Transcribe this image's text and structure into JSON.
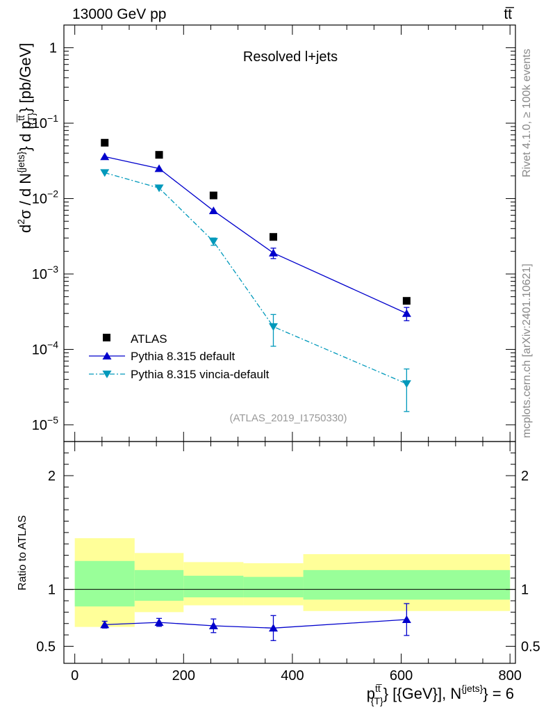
{
  "header": {
    "energy_label": "13000 GeV pp",
    "process_label": "tt̅",
    "inplot_title": "Resolved l+jets",
    "analysis_id": "(ATLAS_2019_I1750330)",
    "side_rivet": "Rivet 4.1.0, ≥ 100k events",
    "side_mcplots": "mcplots.cern.ch [arXiv:2401.10621]"
  },
  "colors": {
    "atlas": "#000000",
    "default": "#0000cc",
    "vincia": "#0099bb",
    "band_inner": "#99ff99",
    "band_outer": "#ffff99"
  },
  "chart_data": {
    "type": "scatter",
    "top_panel": {
      "ylabel_parts": [
        "d",
        "2",
        "σ /  d N",
        "{jets}",
        "} d p",
        "t̅t̅",
        "{T}",
        "} [pb/GeV]"
      ],
      "ylog": true,
      "ylim": [
        6e-06,
        2
      ],
      "ytick_labels": [
        {
          "base": "10",
          "exp": "−5",
          "value": 1e-05
        },
        {
          "base": "10",
          "exp": "−4",
          "value": 0.0001
        },
        {
          "base": "10",
          "exp": "−3",
          "value": 0.001
        },
        {
          "base": "10",
          "exp": "−2",
          "value": 0.01
        },
        {
          "base": "10",
          "exp": "−1",
          "value": 0.1
        },
        {
          "base": "1",
          "exp": "",
          "value": 1
        }
      ]
    },
    "x": {
      "xlim": [
        -20,
        810
      ],
      "bins": [
        [
          0,
          110
        ],
        [
          110,
          200
        ],
        [
          200,
          310
        ],
        [
          310,
          420
        ],
        [
          420,
          800
        ]
      ],
      "centers": [
        55,
        155,
        255,
        365,
        610
      ],
      "tick_labels": [
        "0",
        "200",
        "400",
        "600",
        "800"
      ],
      "tick_values": [
        0,
        200,
        400,
        600,
        800
      ],
      "xlabel_parts": [
        "p",
        "tt̅",
        "{T}",
        "} [{GeV}], N",
        "{jets}",
        "} = 6"
      ]
    },
    "series": [
      {
        "name": "ATLAS",
        "marker": "square",
        "values": [
          0.055,
          0.038,
          0.011,
          0.0031,
          0.00044
        ]
      },
      {
        "name": "Pythia 8.315 default",
        "marker": "triangle-up",
        "line": "solid",
        "values": [
          0.036,
          0.025,
          0.0069,
          0.0019,
          0.0003
        ],
        "err_low": [
          0.0005,
          0.0005,
          0.0002,
          0.0003,
          6e-05
        ],
        "err_high": [
          0.0005,
          0.0005,
          0.0002,
          0.0003,
          6e-05
        ]
      },
      {
        "name": "Pythia 8.315 vincia-default",
        "marker": "triangle-down",
        "line": "dashdot",
        "values": [
          0.022,
          0.0138,
          0.0027,
          0.0002,
          3.5e-05
        ],
        "err_low": [
          0.0005,
          0.0003,
          0.0003,
          9e-05,
          2e-05
        ],
        "err_high": [
          0.0005,
          0.0003,
          0.0003,
          9e-05,
          2e-05
        ]
      }
    ],
    "ratio_panel": {
      "ylabel": "Ratio to ATLAS",
      "ylim": [
        0.35,
        2.3
      ],
      "tick_labels": [
        "0.5",
        "1",
        "2"
      ],
      "tick_values": [
        0.5,
        1,
        2
      ],
      "band_inner": [
        [
          0.85,
          1.25
        ],
        [
          0.9,
          1.17
        ],
        [
          0.93,
          1.12
        ],
        [
          0.93,
          1.11
        ],
        [
          0.91,
          1.17
        ]
      ],
      "band_outer": [
        [
          0.67,
          1.45
        ],
        [
          0.8,
          1.32
        ],
        [
          0.86,
          1.24
        ],
        [
          0.86,
          1.23
        ],
        [
          0.81,
          1.31
        ]
      ],
      "default_ratio": [
        0.69,
        0.71,
        0.68,
        0.66,
        0.735
      ],
      "default_ratio_err": [
        0.03,
        0.035,
        0.06,
        0.11,
        0.14
      ]
    }
  }
}
